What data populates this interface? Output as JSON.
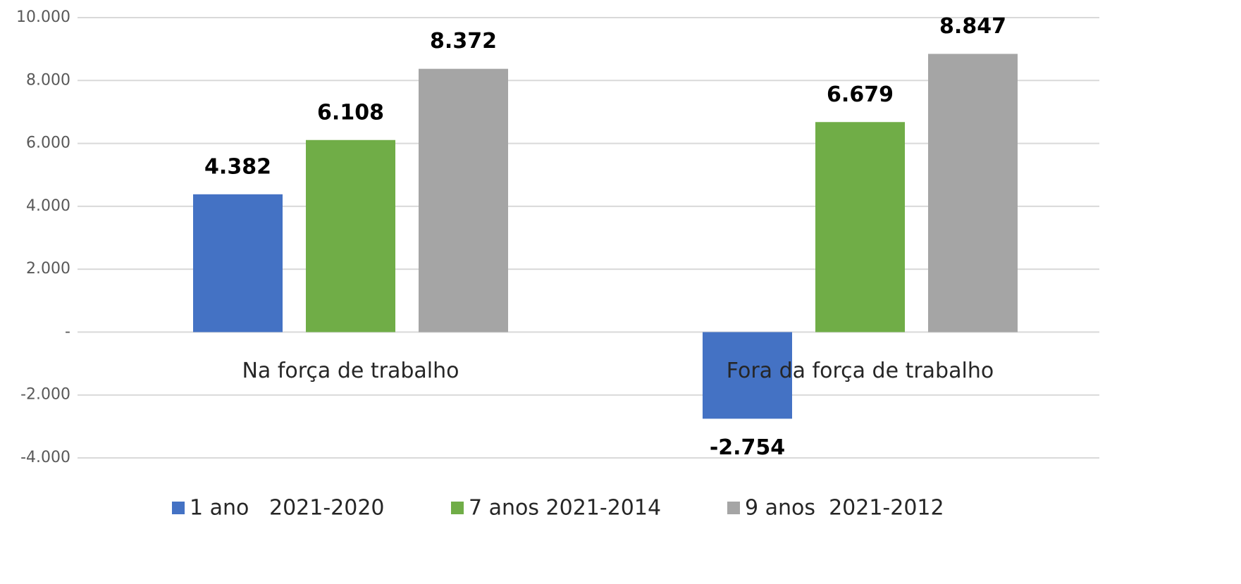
{
  "chart_data": {
    "type": "bar",
    "categories": [
      "Na força de trabalho",
      "Fora da força de trabalho"
    ],
    "series": [
      {
        "name": "1 ano   2021-2020",
        "color": "#4472c4",
        "values": [
          4382,
          -2754
        ],
        "value_labels": [
          "4.382",
          "-2.754"
        ]
      },
      {
        "name": "7 anos 2021-2014",
        "color": "#70ad47",
        "values": [
          6108,
          6679
        ],
        "value_labels": [
          "6.108",
          "6.679"
        ]
      },
      {
        "name": "9 anos  2021-2012",
        "color": "#a5a5a5",
        "values": [
          8372,
          8847
        ],
        "value_labels": [
          "8.372",
          "8.847"
        ]
      }
    ],
    "ylim": [
      -4000,
      10000
    ],
    "yticks": [
      {
        "value": -4000,
        "label": "-4.000"
      },
      {
        "value": -2000,
        "label": "-2.000"
      },
      {
        "value": 0,
        "label": "-"
      },
      {
        "value": 2000,
        "label": "2.000"
      },
      {
        "value": 4000,
        "label": "4.000"
      },
      {
        "value": 6000,
        "label": "6.000"
      },
      {
        "value": 8000,
        "label": "8.000"
      },
      {
        "value": 10000,
        "label": "10.000"
      }
    ],
    "grid": true,
    "legend": "bottom"
  }
}
